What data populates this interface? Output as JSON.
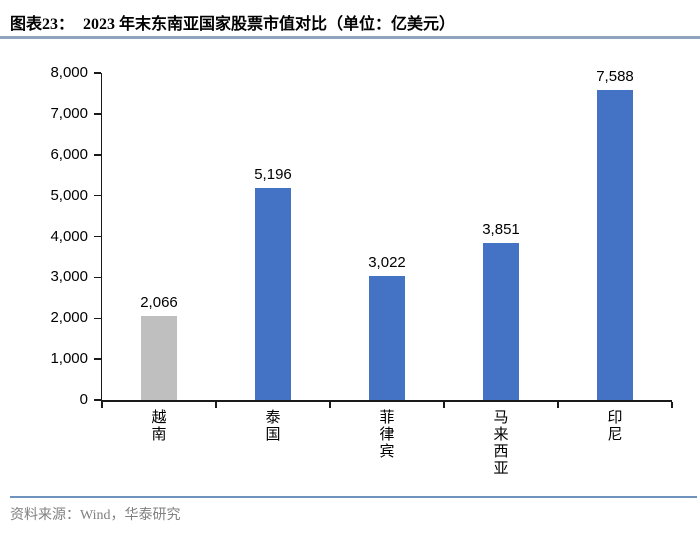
{
  "header": {
    "title_label": "图表23：",
    "title_text": "2023 年末东南亚国家股票市值对比（单位：亿美元）"
  },
  "footer": {
    "source": "资料来源：Wind，华泰研究"
  },
  "colors": {
    "bar_blue": "#4472C4",
    "bar_gray": "#BFBFBF",
    "axis": "#1a1a1a",
    "title_rule": "#8FA5BD",
    "footer_rule": "#6E93BF",
    "source_text": "#808080",
    "label_text": "#000000"
  },
  "chart_data": {
    "type": "bar",
    "title": "2023 年末东南亚国家股票市值对比（单位：亿美元）",
    "categories": [
      "越南",
      "泰国",
      "菲律宾",
      "马来西亚",
      "印尼"
    ],
    "values": [
      2066,
      5196,
      3022,
      3851,
      7588
    ],
    "value_labels": [
      "2,066",
      "5,196",
      "3,022",
      "3,851",
      "7,588"
    ],
    "bar_colors": [
      "#BFBFBF",
      "#4472C4",
      "#4472C4",
      "#4472C4",
      "#4472C4"
    ],
    "xlabel": "",
    "ylabel": "",
    "ylim": [
      0,
      8000
    ],
    "ytick_step": 1000,
    "ytick_labels": [
      "0",
      "1,000",
      "2,000",
      "3,000",
      "4,000",
      "5,000",
      "6,000",
      "7,000",
      "8,000"
    ],
    "grid": false,
    "legend": false,
    "unit": "亿美元"
  }
}
